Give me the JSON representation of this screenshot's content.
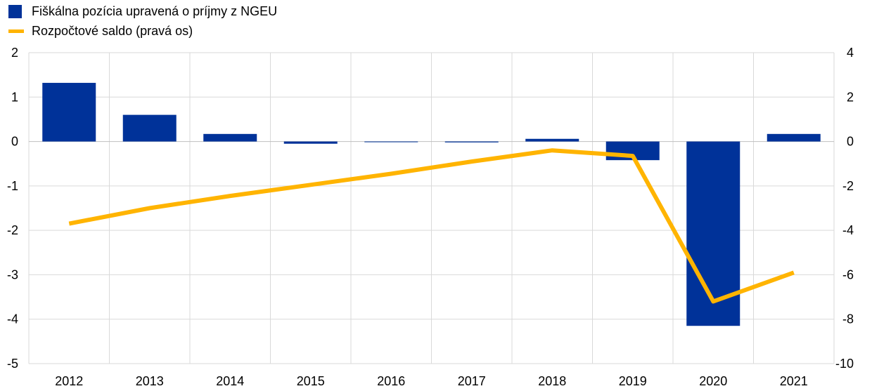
{
  "chart_data": {
    "type": "bar",
    "title": "",
    "categories": [
      "2012",
      "2013",
      "2014",
      "2015",
      "2016",
      "2017",
      "2018",
      "2019",
      "2020",
      "2021"
    ],
    "series": [
      {
        "name": "Fiškálna pozícia upravená o príjmy z NGEU",
        "type": "bar",
        "axis": "left",
        "color": "#003299",
        "values": [
          1.32,
          0.6,
          0.17,
          -0.05,
          0.0,
          -0.02,
          0.06,
          -0.42,
          -4.15,
          0.17
        ]
      },
      {
        "name": "Rozpočtové saldo (pravá os)",
        "type": "line",
        "axis": "right",
        "color": "#FFB400",
        "values": [
          -3.7,
          -3.0,
          -2.45,
          -1.95,
          -1.45,
          -0.9,
          -0.4,
          -0.65,
          -7.2,
          -5.9
        ]
      }
    ],
    "y_left": {
      "min": -5,
      "max": 2,
      "ticks": [
        "2",
        "1",
        "0",
        "-1",
        "-2",
        "-3",
        "-4",
        "-5"
      ]
    },
    "y_right": {
      "min": -10,
      "max": 4,
      "ticks": [
        "4",
        "2",
        "0",
        "-2",
        "-4",
        "-6",
        "-8",
        "-10"
      ]
    },
    "grid": true,
    "legend_position": "top-left"
  }
}
